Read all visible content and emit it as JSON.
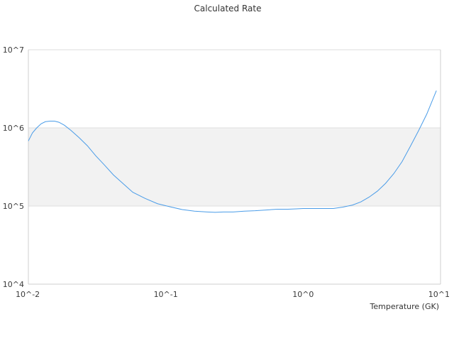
{
  "chart_data": {
    "type": "line",
    "title": "Calculated Rate",
    "xlabel": "Temperature (GK)",
    "ylabel": "",
    "x_scale": "log",
    "y_scale": "log",
    "xlim": [
      0.01,
      10
    ],
    "ylim": [
      10000,
      10000000
    ],
    "x_ticks": [
      "10^-2",
      "10^-1",
      "10^0",
      "10^1"
    ],
    "y_ticks": [
      "10^4",
      "10^5",
      "10^6",
      "10^7"
    ],
    "grid": true,
    "band": [
      100000,
      1000000
    ],
    "colors": {
      "line": "#4a9ce8",
      "band": "#f2f2f2",
      "grid": "#dddddd",
      "axis": "#cfcfcf"
    },
    "series": [
      {
        "x": [
          0.01,
          0.0107,
          0.0115,
          0.0124,
          0.0133,
          0.0144,
          0.0155,
          0.0167,
          0.0183,
          0.0204,
          0.0234,
          0.0269,
          0.0309,
          0.0355,
          0.0416,
          0.0479,
          0.0575,
          0.0708,
          0.0871,
          0.107,
          0.132,
          0.162,
          0.2,
          0.229,
          0.263,
          0.309,
          0.372,
          0.447,
          0.537,
          0.646,
          0.776,
          0.891,
          1.0,
          1.2,
          1.41,
          1.66,
          1.95,
          2.29,
          2.63,
          3.02,
          3.47,
          3.98,
          4.57,
          5.25,
          6.03,
          6.92,
          7.94,
          9.33
        ],
        "y": [
          680000,
          860000,
          1000000,
          1130000,
          1200000,
          1220000,
          1220000,
          1180000,
          1080000,
          930000,
          750000,
          590000,
          440000,
          340000,
          250000,
          200000,
          150000,
          125000,
          107000,
          98000,
          90000,
          86000,
          84000,
          83000,
          84000,
          84000,
          86000,
          87000,
          89000,
          91000,
          91000,
          92000,
          93000,
          93000,
          93000,
          93000,
          97000,
          103000,
          113000,
          130000,
          155000,
          195000,
          260000,
          370000,
          580000,
          920000,
          1500000,
          3000000
        ]
      }
    ]
  }
}
